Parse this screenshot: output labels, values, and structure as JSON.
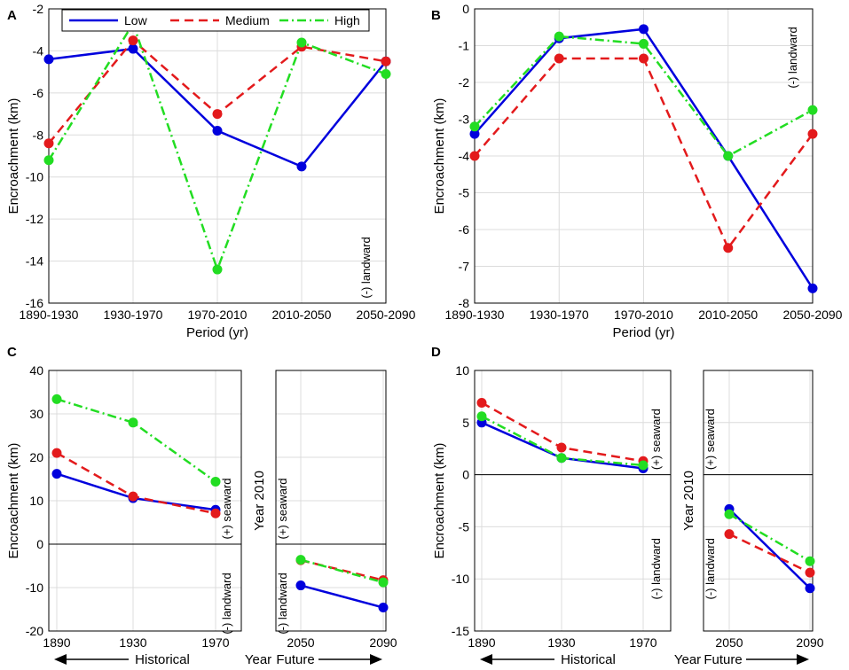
{
  "legend": {
    "entries": [
      {
        "name": "Low",
        "color": "#0000dd",
        "dash": "solid"
      },
      {
        "name": "Medium",
        "color": "#e31a1c",
        "dash": "dashed"
      },
      {
        "name": "High",
        "color": "#22dd22",
        "dash": "dashdot"
      }
    ]
  },
  "chart_data": [
    {
      "panel": "A",
      "type": "line",
      "xlabel": "Period (yr)",
      "ylabel": "Encroachment (km)",
      "categories": [
        "1890-1930",
        "1930-1970",
        "1970-2010",
        "2010-2050",
        "2050-2090"
      ],
      "ylim": [
        -16,
        -2
      ],
      "yticks": [
        -16,
        -14,
        -12,
        -10,
        -8,
        -6,
        -4,
        -2
      ],
      "annotations": [
        {
          "text": "(-) landward"
        }
      ],
      "series": [
        {
          "name": "Low",
          "values": [
            -4.4,
            -3.9,
            -7.8,
            -9.5,
            -4.5
          ]
        },
        {
          "name": "Medium",
          "values": [
            -8.4,
            -3.5,
            -7.0,
            -3.8,
            -4.5
          ]
        },
        {
          "name": "High",
          "values": [
            -9.2,
            -2.7,
            -14.4,
            -3.6,
            -5.1
          ]
        }
      ]
    },
    {
      "panel": "B",
      "type": "line",
      "xlabel": "Period (yr)",
      "ylabel": "Encroachment (km)",
      "categories": [
        "1890-1930",
        "1930-1970",
        "1970-2010",
        "2010-2050",
        "2050-2090"
      ],
      "ylim": [
        -8,
        0
      ],
      "yticks": [
        -8,
        -7,
        -6,
        -5,
        -4,
        -3,
        -2,
        -1,
        0
      ],
      "annotations": [
        {
          "text": "(-) landward"
        }
      ],
      "series": [
        {
          "name": "Low",
          "values": [
            -3.4,
            -0.8,
            -0.55,
            -4.0,
            -7.6
          ]
        },
        {
          "name": "Medium",
          "values": [
            -4.0,
            -1.35,
            -1.35,
            -6.5,
            -3.4
          ]
        },
        {
          "name": "High",
          "values": [
            -3.2,
            -0.75,
            -0.95,
            -4.0,
            -2.75
          ]
        }
      ]
    },
    {
      "panel": "C",
      "type": "line",
      "xlabel": "",
      "ylabel": "Encroachment (km)",
      "x": [
        1890,
        1930,
        1970,
        2050,
        2090
      ],
      "xticks": [
        "1890",
        "1930",
        "1970",
        "2050",
        "2090"
      ],
      "ylim": [
        -20,
        40
      ],
      "yticks": [
        -20,
        -10,
        0,
        10,
        20,
        30,
        40
      ],
      "divider_label": "Year 2010",
      "historical_annotations": [
        {
          "text": "(+) seaward"
        },
        {
          "text": "(-) landward"
        }
      ],
      "future_annotations": [
        {
          "text": "(+) seaward"
        },
        {
          "text": "(-) landward"
        }
      ],
      "bottom_labels": {
        "historical": "Historical",
        "year": "Year",
        "future": "Future"
      },
      "series": [
        {
          "name": "Low",
          "historical": [
            16.2,
            10.6,
            7.9
          ],
          "future": [
            -9.5,
            -14.6
          ]
        },
        {
          "name": "Medium",
          "historical": [
            21.0,
            11.0,
            7.1
          ],
          "future": [
            -3.7,
            -8.3
          ]
        },
        {
          "name": "High",
          "historical": [
            33.4,
            28.0,
            14.4
          ],
          "future": [
            -3.6,
            -8.8
          ]
        }
      ]
    },
    {
      "panel": "D",
      "type": "line",
      "xlabel": "",
      "ylabel": "Encroachment (km)",
      "x": [
        1890,
        1930,
        1970,
        2050,
        2090
      ],
      "xticks": [
        "1890",
        "1930",
        "1970",
        "2050",
        "2090"
      ],
      "ylim": [
        -15,
        10
      ],
      "yticks": [
        -15,
        -10,
        -5,
        0,
        5,
        10
      ],
      "divider_label": "Year 2010",
      "historical_annotations": [
        {
          "text": "(+) seaward"
        },
        {
          "text": "(-) landward"
        }
      ],
      "future_annotations": [
        {
          "text": "(+) seaward"
        },
        {
          "text": "(-) landward"
        }
      ],
      "bottom_labels": {
        "historical": "Historical",
        "year": "Year",
        "future": "Future"
      },
      "series": [
        {
          "name": "Low",
          "historical": [
            5.0,
            1.6,
            0.6
          ],
          "future": [
            -3.3,
            -10.9
          ]
        },
        {
          "name": "Medium",
          "historical": [
            6.9,
            2.6,
            1.3
          ],
          "future": [
            -5.7,
            -9.4
          ]
        },
        {
          "name": "High",
          "historical": [
            5.6,
            1.6,
            0.9
          ],
          "future": [
            -3.8,
            -8.3
          ]
        }
      ]
    }
  ]
}
